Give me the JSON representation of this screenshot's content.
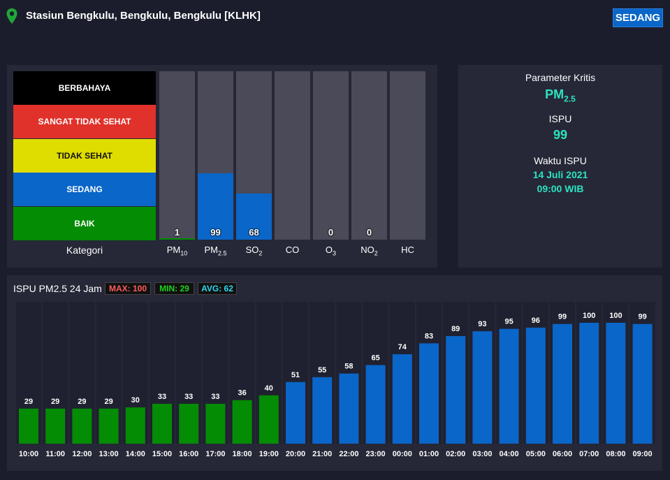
{
  "header": {
    "station": "Stasiun Bengkulu, Bengkulu, Bengkulu [KLHK]",
    "status": "SEDANG"
  },
  "categories": [
    {
      "label": "BERBAHAYA",
      "color": "#000000",
      "text_color": "#ffffff"
    },
    {
      "label": "SANGAT TIDAK SEHAT",
      "color": "#e0312b",
      "text_color": "#ffffff"
    },
    {
      "label": "TIDAK SEHAT",
      "color": "#dfdd00",
      "text_color": "#111111"
    },
    {
      "label": "SEDANG",
      "color": "#0a66c8",
      "text_color": "#ffffff"
    },
    {
      "label": "BAIK",
      "color": "#048c04",
      "text_color": "#ffffff"
    }
  ],
  "kategori_label": "Kategori",
  "parameters": [
    {
      "base": "PM",
      "sub": "10",
      "value": "1",
      "level": 1,
      "color": "#048c04"
    },
    {
      "base": "PM",
      "sub": "2.5",
      "value": "99",
      "level": 99,
      "color": "#0a66c8"
    },
    {
      "base": "SO",
      "sub": "2",
      "value": "68",
      "level": 68,
      "color": "#0a66c8"
    },
    {
      "base": "CO",
      "sub": "",
      "value": "",
      "level": 0,
      "color": "#0a66c8"
    },
    {
      "base": "O",
      "sub": "3",
      "value": "0",
      "level": 0,
      "color": "#0a66c8"
    },
    {
      "base": "NO",
      "sub": "2",
      "value": "0",
      "level": 0,
      "color": "#0a66c8"
    },
    {
      "base": "HC",
      "sub": "",
      "value": "",
      "level": 0,
      "color": "#0a66c8"
    }
  ],
  "info": {
    "param_label": "Parameter Kritis",
    "param_base": "PM",
    "param_sub": "2.5",
    "ispu_label": "ISPU",
    "ispu_value": "99",
    "time_label": "Waktu ISPU",
    "date": "14 Juli 2021",
    "time": "09:00 WIB"
  },
  "chart": {
    "title": "ISPU PM2.5 24 Jam",
    "max_label": "MAX: 100",
    "min_label": "MIN: 29",
    "avg_label": "AVG: 62",
    "colors": {
      "baik": "#048c04",
      "sedang": "#0a66c8",
      "max_text": "#ff5b5b",
      "min_text": "#1cd41c",
      "avg_text": "#2ad8f0"
    }
  },
  "chart_data": {
    "type": "bar",
    "categories": [
      "10:00",
      "11:00",
      "12:00",
      "13:00",
      "14:00",
      "15:00",
      "16:00",
      "17:00",
      "18:00",
      "19:00",
      "20:00",
      "21:00",
      "22:00",
      "23:00",
      "00:00",
      "01:00",
      "02:00",
      "03:00",
      "04:00",
      "05:00",
      "06:00",
      "07:00",
      "08:00",
      "09:00"
    ],
    "values": [
      29,
      29,
      29,
      29,
      30,
      33,
      33,
      33,
      36,
      40,
      51,
      55,
      58,
      65,
      74,
      83,
      89,
      93,
      95,
      96,
      99,
      100,
      100,
      99
    ],
    "title": "ISPU PM2.5 24 Jam",
    "ylim": [
      0,
      100
    ],
    "grid": false,
    "legend": "none"
  }
}
